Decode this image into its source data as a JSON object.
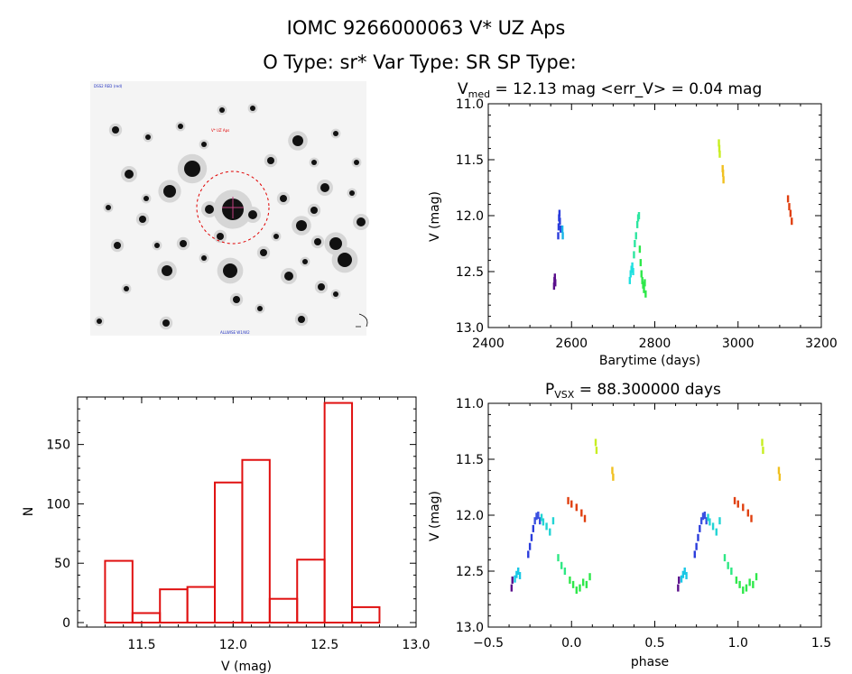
{
  "header": {
    "line1": "IOMC 9266000063   V* UZ Aps",
    "line2": "O Type: sr*  Var Type: SR  SP Type:"
  },
  "image_panel": {
    "corner_label_top_left": "DSS2 RED (red)",
    "target_label": "V* UZ Aps",
    "bottom_label": "ALLWISE W1/W2",
    "circle_color": "#e00000"
  },
  "lc_panel": {
    "title_main": "V",
    "title_sub": "med",
    "title_rest": " = 12.13 mag <err_V> = 0.04 mag",
    "xlabel": "Barytime (days)",
    "ylabel": "V (mag)"
  },
  "phase_panel": {
    "title_main": "P",
    "title_sub": "VSX",
    "title_rest": " = 88.300000 days",
    "xlabel": "phase",
    "ylabel": "V (mag)"
  },
  "hist_panel": {
    "xlabel": "V (mag)",
    "ylabel": "N"
  },
  "chart_data": [
    {
      "type": "scatter",
      "name": "light-curve",
      "title": "Vmed = 12.13 mag <err_V> = 0.04 mag",
      "xlabel": "Barytime (days)",
      "ylabel": "V (mag)",
      "xlim": [
        2400,
        3200
      ],
      "ylim": [
        13.0,
        11.0
      ],
      "xticks": [
        "2400",
        "2600",
        "2800",
        "3000",
        "3200"
      ],
      "yticks": [
        "11.0",
        "11.5",
        "12.0",
        "12.5",
        "13.0"
      ],
      "groups": [
        {
          "color": "#5a0f8c",
          "x": [
            2558,
            2559,
            2560,
            2561
          ],
          "y": [
            12.63,
            12.58,
            12.55,
            12.6
          ]
        },
        {
          "color": "#2a3cdc",
          "x": [
            2568,
            2569,
            2570,
            2571,
            2572,
            2574
          ],
          "y": [
            12.18,
            12.1,
            12.02,
            11.98,
            12.05,
            12.12
          ]
        },
        {
          "color": "#19b4e6",
          "x": [
            2578,
            2579
          ],
          "y": [
            12.12,
            12.18
          ]
        },
        {
          "color": "#1fe0e0",
          "x": [
            2740,
            2742,
            2744,
            2746,
            2748
          ],
          "y": [
            12.58,
            12.52,
            12.48,
            12.45,
            12.5
          ]
        },
        {
          "color": "#2de6a0",
          "x": [
            2750,
            2752,
            2755,
            2758,
            2760,
            2762
          ],
          "y": [
            12.35,
            12.25,
            12.18,
            12.08,
            12.02,
            12.0
          ]
        },
        {
          "color": "#2ee84a",
          "x": [
            2764,
            2766,
            2768,
            2770,
            2772,
            2774,
            2776,
            2778
          ],
          "y": [
            12.3,
            12.42,
            12.52,
            12.58,
            12.62,
            12.66,
            12.6,
            12.7
          ]
        },
        {
          "color": "#c8ee22",
          "x": [
            2954,
            2955,
            2956
          ],
          "y": [
            11.35,
            11.4,
            11.45
          ]
        },
        {
          "color": "#f0c020",
          "x": [
            2963,
            2964,
            2965
          ],
          "y": [
            11.58,
            11.62,
            11.68
          ]
        },
        {
          "color": "#e04010",
          "x": [
            3120,
            3123,
            3126,
            3129
          ],
          "y": [
            11.85,
            11.92,
            11.98,
            12.05
          ]
        }
      ]
    },
    {
      "type": "scatter",
      "name": "phase-curve",
      "title": "PVSX = 88.300000 days",
      "xlabel": "phase",
      "ylabel": "V (mag)",
      "xlim": [
        -0.5,
        1.5
      ],
      "ylim": [
        13.0,
        11.0
      ],
      "xticks": [
        "−0.5",
        "0.0",
        "0.5",
        "1.0",
        "1.5"
      ],
      "yticks": [
        "11.0",
        "11.5",
        "12.0",
        "12.5",
        "13.0"
      ],
      "groups": [
        {
          "color": "#5a0f8c",
          "x": [
            -0.36,
            -0.355
          ],
          "y": [
            12.65,
            12.58
          ]
        },
        {
          "color": "#19c8e6",
          "x": [
            -0.34,
            -0.33,
            -0.32,
            -0.31
          ],
          "y": [
            12.57,
            12.53,
            12.5,
            12.54
          ]
        },
        {
          "color": "#2a3cdc",
          "x": [
            -0.26,
            -0.25,
            -0.24,
            -0.23
          ],
          "y": [
            12.35,
            12.28,
            12.2,
            12.12
          ]
        },
        {
          "color": "#3a50e0",
          "x": [
            -0.22,
            -0.21,
            -0.2,
            -0.19
          ],
          "y": [
            12.05,
            12.01,
            12.0,
            12.05
          ]
        },
        {
          "color": "#22d4d4",
          "x": [
            -0.18,
            -0.17,
            -0.15,
            -0.13,
            -0.11
          ],
          "y": [
            12.02,
            12.06,
            12.1,
            12.15,
            12.05
          ]
        },
        {
          "color": "#2ee884",
          "x": [
            -0.08,
            -0.06,
            -0.04
          ],
          "y": [
            12.38,
            12.45,
            12.5
          ]
        },
        {
          "color": "#2ee84a",
          "x": [
            -0.01,
            0.01,
            0.03,
            0.05,
            0.07,
            0.09,
            0.11
          ],
          "y": [
            12.58,
            12.62,
            12.67,
            12.65,
            12.6,
            12.62,
            12.55
          ]
        },
        {
          "color": "#e04010",
          "x": [
            -0.02,
            0.0,
            0.03,
            0.06,
            0.08
          ],
          "y": [
            11.87,
            11.9,
            11.93,
            11.98,
            12.03
          ]
        },
        {
          "color": "#c8ee22",
          "x": [
            0.145,
            0.15
          ],
          "y": [
            11.35,
            11.42
          ]
        },
        {
          "color": "#f0c020",
          "x": [
            0.245,
            0.25
          ],
          "y": [
            11.6,
            11.66
          ]
        },
        {
          "color": "#5a0f8c",
          "x": [
            0.64,
            0.645
          ],
          "y": [
            12.65,
            12.58
          ]
        },
        {
          "color": "#19c8e6",
          "x": [
            0.66,
            0.67,
            0.68,
            0.69
          ],
          "y": [
            12.57,
            12.53,
            12.5,
            12.54
          ]
        },
        {
          "color": "#2a3cdc",
          "x": [
            0.74,
            0.75,
            0.76,
            0.77
          ],
          "y": [
            12.35,
            12.28,
            12.2,
            12.12
          ]
        },
        {
          "color": "#3a50e0",
          "x": [
            0.78,
            0.79,
            0.8,
            0.81
          ],
          "y": [
            12.05,
            12.01,
            12.0,
            12.05
          ]
        },
        {
          "color": "#22d4d4",
          "x": [
            0.82,
            0.83,
            0.85,
            0.87,
            0.89
          ],
          "y": [
            12.02,
            12.06,
            12.1,
            12.15,
            12.05
          ]
        },
        {
          "color": "#2ee884",
          "x": [
            0.92,
            0.94,
            0.96
          ],
          "y": [
            12.38,
            12.45,
            12.5
          ]
        },
        {
          "color": "#2ee84a",
          "x": [
            0.99,
            1.01,
            1.03,
            1.05,
            1.07,
            1.09,
            1.11
          ],
          "y": [
            12.58,
            12.62,
            12.67,
            12.65,
            12.6,
            12.62,
            12.55
          ]
        },
        {
          "color": "#e04010",
          "x": [
            0.98,
            1.0,
            1.03,
            1.06,
            1.08
          ],
          "y": [
            11.87,
            11.9,
            11.93,
            11.98,
            12.03
          ]
        },
        {
          "color": "#c8ee22",
          "x": [
            1.145,
            1.15
          ],
          "y": [
            11.35,
            11.42
          ]
        },
        {
          "color": "#f0c020",
          "x": [
            1.245,
            1.25
          ],
          "y": [
            11.6,
            11.66
          ]
        }
      ]
    },
    {
      "type": "bar",
      "name": "histogram",
      "xlabel": "V (mag)",
      "ylabel": "N",
      "bar_color": "#e01010",
      "xlim": [
        11.15,
        13.0
      ],
      "ylim": [
        0,
        190
      ],
      "xticks": [
        "11.5",
        "12.0",
        "12.5",
        "13.0"
      ],
      "xtick_values": [
        11.5,
        12.0,
        12.5,
        13.0
      ],
      "yticks": [
        "0",
        "50",
        "100",
        "150"
      ],
      "ytick_values": [
        0,
        50,
        100,
        150
      ],
      "bin_edges": [
        11.3,
        11.45,
        11.6,
        11.75,
        11.9,
        12.05,
        12.2,
        12.35,
        12.5,
        12.65,
        12.8
      ],
      "values": [
        52,
        8,
        28,
        30,
        118,
        137,
        20,
        53,
        185,
        13
      ]
    }
  ]
}
